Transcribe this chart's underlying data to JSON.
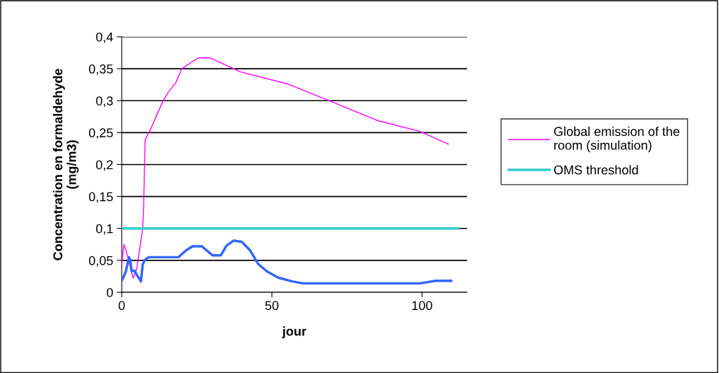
{
  "chart_data": {
    "type": "line",
    "xlabel": "jour",
    "ylabel": "Concentration en formaldehyde\n(mg/m3)",
    "xlim": [
      0,
      115
    ],
    "xticks": [
      0,
      50,
      100
    ],
    "ylim": [
      0,
      0.4
    ],
    "yticks": [
      {
        "value": 0,
        "label": "0"
      },
      {
        "value": 0.05,
        "label": "0,05"
      },
      {
        "value": 0.1,
        "label": "0,1"
      },
      {
        "value": 0.15,
        "label": "0,15"
      },
      {
        "value": 0.2,
        "label": "0,2"
      },
      {
        "value": 0.25,
        "label": "0,25"
      },
      {
        "value": 0.3,
        "label": "0,3"
      },
      {
        "value": 0.35,
        "label": "0,35"
      },
      {
        "value": 0.4,
        "label": "0,4"
      }
    ],
    "grid": "y",
    "legend": "right",
    "marker": "none",
    "series": [
      {
        "name": "Global emission of the room (simulation)",
        "color": "#ff00ff",
        "x": [
          0,
          0.7,
          1.4,
          3.8,
          5,
          7,
          7.3,
          7.8,
          9.4,
          13.7,
          15.6,
          17.9,
          20,
          25.5,
          29.5,
          39.6,
          55.4,
          69.6,
          85.1,
          99.3,
          108.7
        ],
        "values": [
          0.042,
          0.075,
          0.066,
          0.022,
          0.037,
          0.1,
          0.136,
          0.239,
          0.253,
          0.299,
          0.314,
          0.327,
          0.35,
          0.367,
          0.367,
          0.345,
          0.326,
          0.299,
          0.269,
          0.252,
          0.232
        ]
      },
      {
        "color": "#3366ff",
        "x": [
          0,
          0.7,
          1.4,
          2.4,
          2.8,
          3.3,
          4.2,
          6.4,
          7,
          7.8,
          9,
          18.9,
          21.5,
          23.6,
          26.7,
          30.2,
          33,
          34.9,
          37.3,
          40,
          42.7,
          45.5,
          48.3,
          52.1,
          56.8,
          60.4,
          99.3,
          104.5,
          109.7
        ],
        "values": [
          0.018,
          0.025,
          0.033,
          0.055,
          0.051,
          0.033,
          0.034,
          0.017,
          0.044,
          0.051,
          0.055,
          0.055,
          0.066,
          0.072,
          0.072,
          0.058,
          0.058,
          0.073,
          0.081,
          0.079,
          0.066,
          0.044,
          0.033,
          0.023,
          0.017,
          0.014,
          0.014,
          0.018,
          0.018
        ]
      },
      {
        "name": "OMS threshold",
        "color": "#33cccc",
        "x": [
          0,
          112
        ],
        "values": [
          0.1,
          0.1
        ]
      }
    ]
  }
}
